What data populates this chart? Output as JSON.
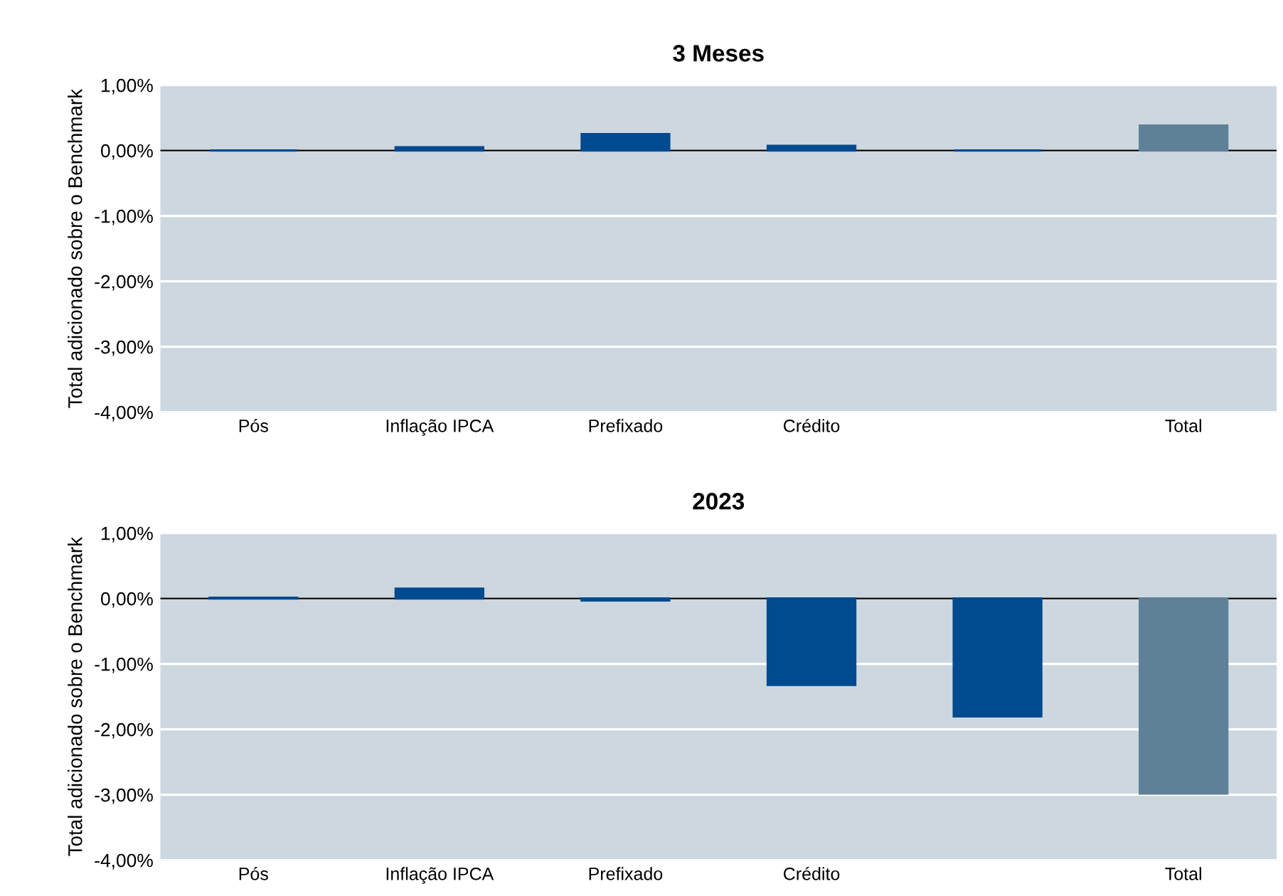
{
  "chart_data": [
    {
      "type": "bar",
      "title": "3 Meses",
      "ylabel": "Total adicionado sobre o Benchmark",
      "categories": [
        "Pós",
        "Inflação IPCA",
        "Prefixado",
        "Crédito",
        null,
        "Total"
      ],
      "values": [
        0,
        0.05,
        0.25,
        0.07,
        0,
        0.38
      ],
      "colors": [
        "#004a8f",
        "#004a8f",
        "#004a8f",
        "#004a8f",
        "#004a8f",
        "#5f8198"
      ],
      "ylim": [
        -4,
        1
      ],
      "yticks": [
        {
          "value": -4,
          "label": "-4,00%"
        },
        {
          "value": -3,
          "label": "-3,00%"
        },
        {
          "value": -2,
          "label": "-2,00%"
        },
        {
          "value": -1,
          "label": "-1,00%"
        },
        {
          "value": 0,
          "label": "0,00%"
        },
        {
          "value": 1,
          "label": "1,00%"
        }
      ],
      "grid": "y",
      "ref_lines": [
        {
          "axis": "y",
          "value": 0,
          "color": "#000000"
        }
      ]
    },
    {
      "type": "bar",
      "title": "2023",
      "ylabel": "Total adicionado sobre o Benchmark",
      "categories": [
        "Pós",
        "Inflação IPCA",
        "Prefixado",
        "Crédito",
        null,
        "Total"
      ],
      "values": [
        0.01,
        0.15,
        -0.03,
        -1.32,
        -1.8,
        -2.98
      ],
      "colors": [
        "#004a8f",
        "#004a8f",
        "#004a8f",
        "#004a8f",
        "#004a8f",
        "#5f8198"
      ],
      "ylim": [
        -4,
        1
      ],
      "yticks": [
        {
          "value": -4,
          "label": "-4,00%"
        },
        {
          "value": -3,
          "label": "-3,00%"
        },
        {
          "value": -2,
          "label": "-2,00%"
        },
        {
          "value": -1,
          "label": "-1,00%"
        },
        {
          "value": 0,
          "label": "0,00%"
        },
        {
          "value": 1,
          "label": "1,00%"
        }
      ],
      "grid": "y",
      "ref_lines": [
        {
          "axis": "y",
          "value": 0,
          "color": "#000000"
        }
      ]
    }
  ]
}
